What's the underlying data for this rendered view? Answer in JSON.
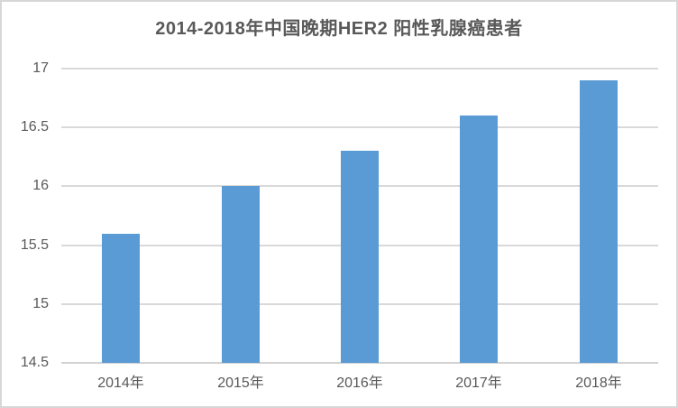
{
  "title": "2014-2018年中国晚期HER2 阳性乳腺癌患者",
  "colors": {
    "bar": "#5B9BD5",
    "gridline": "#D9D9D9",
    "axis_line": "#D2D2D2",
    "text": "#595959",
    "frame_border": "#D7D7D7",
    "background": "#FFFFFF"
  },
  "chart_data": {
    "type": "bar",
    "title": "2014-2018年中国晚期HER2 阳性乳腺癌患者",
    "categories": [
      "2014年",
      "2015年",
      "2016年",
      "2017年",
      "2018年"
    ],
    "values": [
      15.6,
      16.0,
      16.3,
      16.6,
      16.9
    ],
    "xlabel": "",
    "ylabel": "",
    "ylim": [
      14.5,
      17
    ],
    "yticks": [
      14.5,
      15,
      15.5,
      16,
      16.5,
      17
    ],
    "ytick_labels": [
      "14.5",
      "15",
      "15.5",
      "16",
      "16.5",
      "17"
    ],
    "grid": true,
    "legend": "none",
    "bar_color": "#5B9BD5"
  }
}
